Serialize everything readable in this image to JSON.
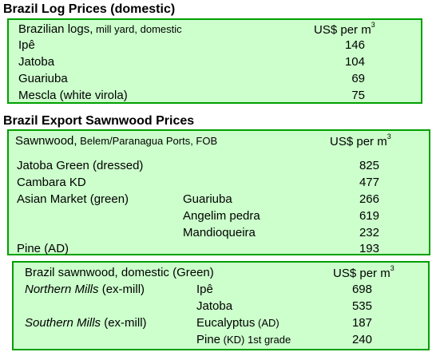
{
  "section1": {
    "title": "Brazil Log Prices (domestic)",
    "header_main": "Brazilian logs,",
    "header_sub": " mill yard, domestic",
    "unit_text": "US$ per m",
    "unit_sup": "3",
    "rows": [
      {
        "name": "Ipê",
        "value": "146"
      },
      {
        "name": "Jatoba",
        "value": "104"
      },
      {
        "name": "Guariuba",
        "value": "69"
      },
      {
        "name": "Mescla (white virola)",
        "value": "75"
      }
    ]
  },
  "section2": {
    "title": "Brazil Export Sawnwood Prices",
    "header_main": "Sawnwood,",
    "header_sub": " Belem/Paranagua Ports, FOB",
    "unit_text": "US$ per m",
    "unit_sup": "3",
    "rows": [
      {
        "name": "Jatoba Green (dressed)",
        "species": "",
        "value": "825"
      },
      {
        "name": "Cambara KD",
        "species": "",
        "value": "477"
      },
      {
        "name": "Asian Market (green)",
        "species": "Guariuba",
        "value": "266"
      },
      {
        "name": "",
        "species": "Angelim pedra",
        "value": "619"
      },
      {
        "name": "",
        "species": "Mandioqueira",
        "value": "232"
      },
      {
        "name": "Pine (AD)",
        "species": "",
        "value": "193"
      }
    ]
  },
  "section3": {
    "header": "Brazil sawnwood, domestic (Green)",
    "unit_text": "US$ per m",
    "unit_sup": "3",
    "rows": [
      {
        "mill_italic": "Northern Mills",
        "mill_rest": " (ex-mill)",
        "species": "Ipê",
        "species_small": "",
        "species_tail": "",
        "value": "698"
      },
      {
        "mill_italic": "",
        "mill_rest": "",
        "species": "Jatoba",
        "species_small": "",
        "species_tail": "",
        "value": "535"
      },
      {
        "mill_italic": "Southern Mills",
        "mill_rest": " (ex-mill)",
        "species": "Eucalyptus",
        "species_small": " (AD)",
        "species_tail": "",
        "value": "187"
      },
      {
        "mill_italic": "",
        "mill_rest": "",
        "species": "Pine",
        "species_small": " (KD)",
        "species_tail": " 1st grade",
        "value": "240"
      }
    ]
  }
}
